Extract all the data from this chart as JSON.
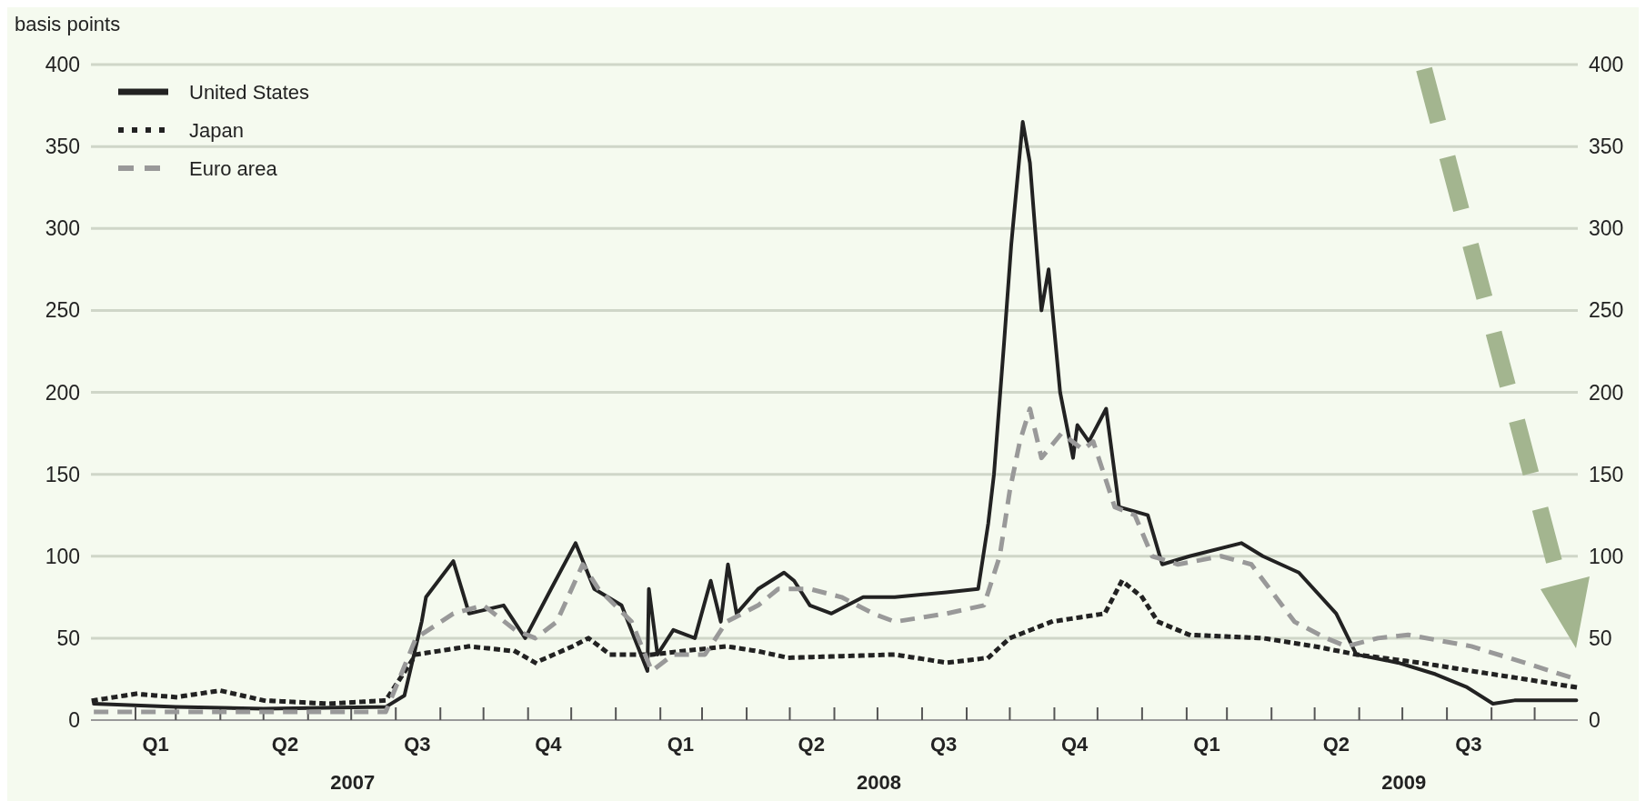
{
  "chart_data": {
    "type": "line",
    "ylabel": "basis points",
    "xlim": [
      "2007-01-01",
      "2009-10-31"
    ],
    "ylim": [
      0,
      400
    ],
    "yticks": [
      0,
      50,
      100,
      150,
      200,
      250,
      300,
      350,
      400
    ],
    "y2lim": [
      0,
      400
    ],
    "y2ticks": [
      0,
      50,
      100,
      150,
      200,
      250,
      300,
      350,
      400
    ],
    "xticks": [
      {
        "value": "2007-02-01",
        "label": null
      },
      {
        "value": "2007-03-01",
        "label": null
      },
      {
        "value": "2007-04-01",
        "label": null
      },
      {
        "value": "2007-05-01",
        "label": null
      },
      {
        "value": "2007-06-01",
        "label": null
      },
      {
        "value": "2007-07-01",
        "label": null
      },
      {
        "value": "2007-08-01",
        "label": null
      },
      {
        "value": "2007-09-01",
        "label": null
      },
      {
        "value": "2007-10-01",
        "label": null
      },
      {
        "value": "2007-11-01",
        "label": null
      },
      {
        "value": "2007-12-01",
        "label": null
      },
      {
        "value": "2008-01-01",
        "label": null
      },
      {
        "value": "2008-02-01",
        "label": null
      },
      {
        "value": "2008-03-01",
        "label": null
      },
      {
        "value": "2008-04-01",
        "label": null
      },
      {
        "value": "2008-05-01",
        "label": null
      },
      {
        "value": "2008-06-01",
        "label": null
      },
      {
        "value": "2008-07-01",
        "label": null
      },
      {
        "value": "2008-08-01",
        "label": null
      },
      {
        "value": "2008-09-01",
        "label": null
      },
      {
        "value": "2008-10-01",
        "label": null
      },
      {
        "value": "2008-11-01",
        "label": null
      },
      {
        "value": "2008-12-01",
        "label": null
      },
      {
        "value": "2009-01-01",
        "label": null
      },
      {
        "value": "2009-02-01",
        "label": null
      },
      {
        "value": "2009-03-01",
        "label": null
      },
      {
        "value": "2009-04-01",
        "label": null
      },
      {
        "value": "2009-05-01",
        "label": null
      },
      {
        "value": "2009-06-01",
        "label": null
      },
      {
        "value": "2009-07-01",
        "label": null
      },
      {
        "value": "2009-08-01",
        "label": null
      },
      {
        "value": "2009-09-01",
        "label": null
      },
      {
        "value": "2009-10-01",
        "label": null
      },
      {
        "value": "2007-02-15",
        "label": "Q1"
      },
      {
        "value": "2007-05-16",
        "label": "Q2"
      },
      {
        "value": "2007-08-16",
        "label": "Q3"
      },
      {
        "value": "2007-11-15",
        "label": "Q4"
      },
      {
        "value": "2008-02-15",
        "label": "Q1"
      },
      {
        "value": "2008-05-16",
        "label": "Q2"
      },
      {
        "value": "2008-08-16",
        "label": "Q3"
      },
      {
        "value": "2008-11-15",
        "label": "Q4"
      },
      {
        "value": "2009-02-15",
        "label": "Q1"
      },
      {
        "value": "2009-05-16",
        "label": "Q2"
      },
      {
        "value": "2009-08-16",
        "label": "Q3"
      }
    ],
    "annotations": [
      "2007",
      "2008",
      "2009"
    ],
    "grid": "y",
    "legend": "top left",
    "series": [
      {
        "name": "United States",
        "color": "#222222",
        "line_style": "solid",
        "x": [
          "2007-01-03",
          "2007-03-01",
          "2007-05-01",
          "2007-07-25",
          "2007-08-07",
          "2007-08-19",
          "2007-08-22",
          "2007-09-10",
          "2007-09-21",
          "2007-10-15",
          "2007-10-30",
          "2007-11-17",
          "2007-12-04",
          "2007-12-17",
          "2008-01-05",
          "2008-01-23",
          "2008-01-24",
          "2008-01-30",
          "2008-02-10",
          "2008-02-25",
          "2008-03-07",
          "2008-03-14",
          "2008-03-19",
          "2008-03-25",
          "2008-04-09",
          "2008-04-27",
          "2008-05-04",
          "2008-05-15",
          "2008-05-30",
          "2008-06-21",
          "2008-07-13",
          "2008-08-18",
          "2008-09-09",
          "2008-09-16",
          "2008-09-20",
          "2008-09-27",
          "2008-10-02",
          "2008-10-10",
          "2008-10-15",
          "2008-10-23",
          "2008-10-28",
          "2008-11-05",
          "2008-11-14",
          "2008-11-17",
          "2008-11-25",
          "2008-12-07",
          "2008-12-16",
          "2009-01-05",
          "2009-01-15",
          "2009-02-03",
          "2009-03-11",
          "2009-03-26",
          "2009-04-20",
          "2009-05-16",
          "2009-05-30",
          "2009-06-28",
          "2009-07-24",
          "2009-08-15",
          "2009-09-02",
          "2009-09-17",
          "2009-10-30"
        ],
        "values": [
          10,
          8,
          7,
          8,
          15,
          60,
          75,
          97,
          65,
          70,
          50,
          80,
          108,
          80,
          70,
          30,
          80,
          40,
          55,
          50,
          85,
          60,
          95,
          65,
          80,
          90,
          85,
          70,
          65,
          75,
          75,
          78,
          80,
          120,
          150,
          230,
          290,
          365,
          340,
          250,
          275,
          200,
          160,
          180,
          170,
          190,
          130,
          125,
          95,
          100,
          108,
          100,
          90,
          65,
          40,
          35,
          28,
          20,
          10,
          12,
          12
        ]
      },
      {
        "name": "Japan",
        "color": "#222222",
        "line_style": "dotted",
        "x": [
          "2007-01-03",
          "2007-02-01",
          "2007-03-01",
          "2007-04-01",
          "2007-05-01",
          "2007-06-15",
          "2007-07-25",
          "2007-08-15",
          "2007-09-21",
          "2007-10-23",
          "2007-11-06",
          "2007-12-02",
          "2007-12-13",
          "2007-12-28",
          "2008-01-26",
          "2008-03-18",
          "2008-04-09",
          "2008-04-30",
          "2008-07-13",
          "2008-08-18",
          "2008-09-16",
          "2008-10-01",
          "2008-10-30",
          "2008-12-06",
          "2008-12-18",
          "2009-01-01",
          "2009-01-12",
          "2009-02-03",
          "2009-03-26",
          "2009-05-01",
          "2009-05-30",
          "2009-07-13",
          "2009-08-18",
          "2009-09-24",
          "2009-10-30"
        ],
        "values": [
          12,
          16,
          14,
          18,
          12,
          10,
          12,
          40,
          45,
          42,
          35,
          45,
          50,
          40,
          40,
          45,
          42,
          38,
          40,
          35,
          38,
          50,
          60,
          65,
          85,
          75,
          60,
          52,
          50,
          45,
          40,
          35,
          30,
          25,
          20
        ]
      },
      {
        "name": "Euro area",
        "color": "#999999",
        "line_style": "dashed",
        "x": [
          "2007-01-03",
          "2007-03-01",
          "2007-05-01",
          "2007-07-25",
          "2007-08-15",
          "2007-09-10",
          "2007-10-01",
          "2007-10-23",
          "2007-11-06",
          "2007-11-21",
          "2007-12-09",
          "2007-12-20",
          "2008-01-12",
          "2008-01-26",
          "2008-02-10",
          "2008-03-03",
          "2008-03-18",
          "2008-04-09",
          "2008-04-23",
          "2008-05-15",
          "2008-06-06",
          "2008-06-28",
          "2008-07-13",
          "2008-08-18",
          "2008-09-13",
          "2008-09-24",
          "2008-10-01",
          "2008-10-08",
          "2008-10-15",
          "2008-10-23",
          "2008-11-06",
          "2008-11-21",
          "2008-11-28",
          "2008-12-13",
          "2008-12-27",
          "2009-01-08",
          "2009-01-26",
          "2009-02-25",
          "2009-03-18",
          "2009-04-17",
          "2009-05-09",
          "2009-05-23",
          "2009-06-14",
          "2009-07-05",
          "2009-08-18",
          "2009-09-24",
          "2009-10-30"
        ],
        "values": [
          5,
          5,
          5,
          5,
          50,
          65,
          70,
          55,
          50,
          60,
          95,
          80,
          60,
          30,
          40,
          40,
          60,
          70,
          80,
          80,
          75,
          65,
          60,
          65,
          70,
          100,
          140,
          170,
          190,
          160,
          175,
          165,
          170,
          130,
          125,
          100,
          95,
          100,
          95,
          60,
          50,
          45,
          50,
          52,
          45,
          35,
          25
        ]
      }
    ]
  }
}
